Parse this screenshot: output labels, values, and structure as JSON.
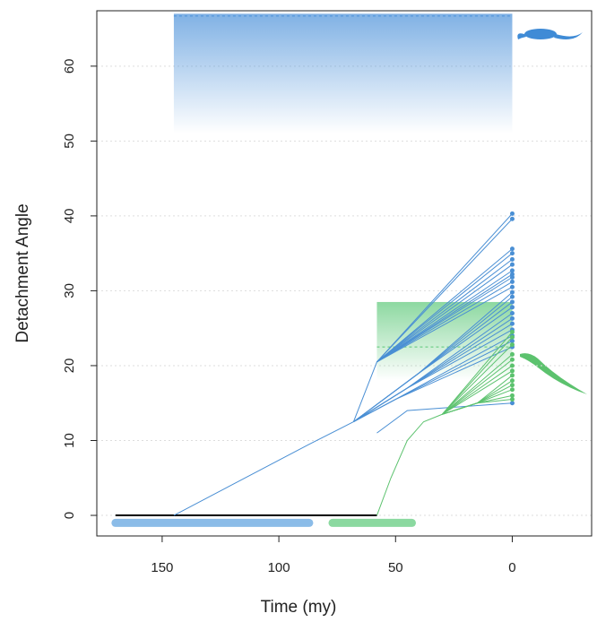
{
  "chart_data": {
    "type": "traitgram",
    "x_label": "Time (my)",
    "y_label": "Detachment Angle",
    "xlim": [
      178,
      -34
    ],
    "ylim": [
      -2.75,
      67.4
    ],
    "xticks": [
      150,
      100,
      50,
      0
    ],
    "yticks": [
      0,
      10,
      20,
      30,
      40,
      50,
      60
    ],
    "grid": true,
    "bands": [
      {
        "color": "#4a90d9",
        "x": [
          145,
          0
        ],
        "y": [
          51,
          67
        ],
        "mean": 66.7
      },
      {
        "color": "#5cc878",
        "x": [
          58,
          0
        ],
        "y": [
          18,
          28.5
        ],
        "mean": 22.5
      }
    ],
    "baseline": {
      "color": "#000000",
      "x": [
        170,
        58
      ],
      "y": 0
    },
    "regime_bars": [
      {
        "color": "#8bbce8",
        "x": [
          170,
          87
        ],
        "y": -1
      },
      {
        "color": "#8bd9a0",
        "x": [
          77,
          43
        ],
        "y": -1
      }
    ],
    "clades": [
      {
        "color": "#4a8fd4",
        "lineages": [
          {
            "x": [
              145,
              87,
              68
            ],
            "y": [
              0,
              9.5,
              12.5
            ]
          },
          {
            "x": [
              68,
              58
            ],
            "y": [
              12.5,
              20.5
            ]
          },
          {
            "x": [
              58,
              0
            ],
            "y": [
              20.5,
              40.3
            ]
          },
          {
            "x": [
              58,
              0
            ],
            "y": [
              20.5,
              39.6
            ]
          },
          {
            "x": [
              58,
              0
            ],
            "y": [
              20.5,
              35.6
            ]
          },
          {
            "x": [
              58,
              0
            ],
            "y": [
              20.5,
              35
            ]
          },
          {
            "x": [
              58,
              0
            ],
            "y": [
              20.5,
              34.2
            ]
          },
          {
            "x": [
              58,
              0
            ],
            "y": [
              20.5,
              33.5
            ]
          },
          {
            "x": [
              58,
              0
            ],
            "y": [
              20.5,
              32.7
            ]
          },
          {
            "x": [
              58,
              0
            ],
            "y": [
              20.5,
              32.2
            ]
          },
          {
            "x": [
              58,
              0
            ],
            "y": [
              20.5,
              31.8
            ]
          },
          {
            "x": [
              58,
              0
            ],
            "y": [
              20.5,
              31.2
            ]
          },
          {
            "x": [
              58,
              0
            ],
            "y": [
              20.5,
              30.5
            ]
          },
          {
            "x": [
              68,
              40,
              0
            ],
            "y": [
              12.5,
              19,
              29.8
            ]
          },
          {
            "x": [
              68,
              40,
              0
            ],
            "y": [
              12.5,
              19,
              29.2
            ]
          },
          {
            "x": [
              68,
              40,
              0
            ],
            "y": [
              12.5,
              19,
              28.5
            ]
          },
          {
            "x": [
              68,
              40,
              0
            ],
            "y": [
              12.5,
              19,
              27.8
            ]
          },
          {
            "x": [
              68,
              45,
              0
            ],
            "y": [
              12.5,
              17,
              27
            ]
          },
          {
            "x": [
              68,
              45,
              0
            ],
            "y": [
              12.5,
              17,
              26.3
            ]
          },
          {
            "x": [
              68,
              45,
              0
            ],
            "y": [
              12.5,
              17,
              25.6
            ]
          },
          {
            "x": [
              68,
              45,
              0
            ],
            "y": [
              12.5,
              17,
              24.8
            ]
          },
          {
            "x": [
              68,
              50,
              0
            ],
            "y": [
              12.5,
              15.5,
              24
            ]
          },
          {
            "x": [
              68,
              50,
              0
            ],
            "y": [
              12.5,
              15.5,
              23.3
            ]
          },
          {
            "x": [
              68,
              50,
              0
            ],
            "y": [
              12.5,
              15.5,
              22.5
            ]
          },
          {
            "x": [
              58,
              45,
              0
            ],
            "y": [
              11,
              14,
              15
            ]
          }
        ]
      },
      {
        "color": "#5cc26e",
        "lineages": [
          {
            "x": [
              58,
              52,
              45,
              38,
              30
            ],
            "y": [
              0,
              5,
              10,
              12.5,
              13.5
            ]
          },
          {
            "x": [
              30,
              0
            ],
            "y": [
              13.5,
              24.5
            ]
          },
          {
            "x": [
              30,
              0
            ],
            "y": [
              13.5,
              23.8
            ]
          },
          {
            "x": [
              30,
              0
            ],
            "y": [
              13.5,
              22.8
            ]
          },
          {
            "x": [
              30,
              0
            ],
            "y": [
              13.5,
              21.5
            ]
          },
          {
            "x": [
              30,
              0
            ],
            "y": [
              13.5,
              20.8
            ]
          },
          {
            "x": [
              30,
              0
            ],
            "y": [
              13.5,
              20
            ]
          },
          {
            "x": [
              30,
              0
            ],
            "y": [
              13.5,
              19.3
            ]
          },
          {
            "x": [
              30,
              15,
              0
            ],
            "y": [
              13.5,
              15,
              18.7
            ]
          },
          {
            "x": [
              30,
              15,
              0
            ],
            "y": [
              13.5,
              15,
              18
            ]
          },
          {
            "x": [
              30,
              15,
              0
            ],
            "y": [
              13.5,
              15,
              17.4
            ]
          },
          {
            "x": [
              30,
              15,
              0
            ],
            "y": [
              13.5,
              15,
              16.8
            ]
          },
          {
            "x": [
              30,
              15,
              0
            ],
            "y": [
              13.5,
              15,
              16
            ]
          },
          {
            "x": [
              30,
              15,
              0
            ],
            "y": [
              13.5,
              15,
              15.5
            ]
          }
        ]
      }
    ]
  }
}
